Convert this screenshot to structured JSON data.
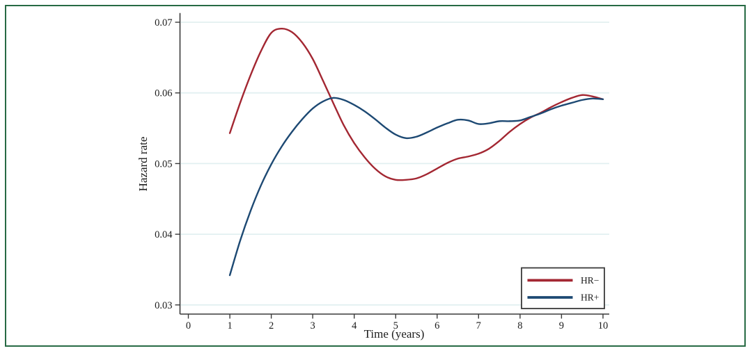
{
  "figure": {
    "background": "#ffffff",
    "border_color": "#276a44"
  },
  "chart_data": {
    "type": "line",
    "title": "",
    "xlabel": "Time (years)",
    "ylabel": "Hazard rate",
    "xlim": [
      0,
      10
    ],
    "ylim": [
      0.03,
      0.07
    ],
    "x_ticks": [
      0,
      1,
      2,
      3,
      4,
      5,
      6,
      7,
      8,
      9,
      10
    ],
    "y_ticks": [
      0.03,
      0.04,
      0.05,
      0.06,
      0.07
    ],
    "grid": "horizontal",
    "grid_color": "#e2f0f1",
    "axis_color": "#3a3a3a",
    "text_color": "#1c1c1c",
    "legend_position": "bottom-right",
    "x": [
      1.0,
      1.25,
      1.5,
      1.75,
      2.0,
      2.25,
      2.5,
      2.75,
      3.0,
      3.25,
      3.5,
      3.75,
      4.0,
      4.25,
      4.5,
      4.75,
      5.0,
      5.25,
      5.5,
      5.75,
      6.0,
      6.25,
      6.5,
      6.75,
      7.0,
      7.25,
      7.5,
      7.75,
      8.0,
      8.25,
      8.5,
      8.75,
      9.0,
      9.25,
      9.5,
      9.75,
      10.0
    ],
    "series": [
      {
        "name": "HR−",
        "color": "#a32732",
        "values": [
          0.0543,
          0.0586,
          0.0625,
          0.0659,
          0.0685,
          0.0691,
          0.0686,
          0.0671,
          0.0648,
          0.0617,
          0.0585,
          0.0554,
          0.0529,
          0.0509,
          0.0493,
          0.0482,
          0.0477,
          0.0477,
          0.0479,
          0.0485,
          0.0493,
          0.0501,
          0.0507,
          0.051,
          0.0514,
          0.0521,
          0.0532,
          0.0545,
          0.0556,
          0.0565,
          0.0572,
          0.058,
          0.0587,
          0.0593,
          0.0597,
          0.0595,
          0.0591
        ]
      },
      {
        "name": "HR+",
        "color": "#1d4973",
        "values": [
          0.0342,
          0.0391,
          0.0433,
          0.0469,
          0.0499,
          0.0524,
          0.0545,
          0.0563,
          0.0578,
          0.0588,
          0.0593,
          0.059,
          0.0583,
          0.0574,
          0.0563,
          0.0551,
          0.0541,
          0.0536,
          0.0538,
          0.0544,
          0.0551,
          0.0557,
          0.0562,
          0.0561,
          0.0556,
          0.0557,
          0.056,
          0.056,
          0.0561,
          0.0566,
          0.0571,
          0.0577,
          0.0582,
          0.0586,
          0.059,
          0.0592,
          0.0591
        ]
      }
    ]
  }
}
